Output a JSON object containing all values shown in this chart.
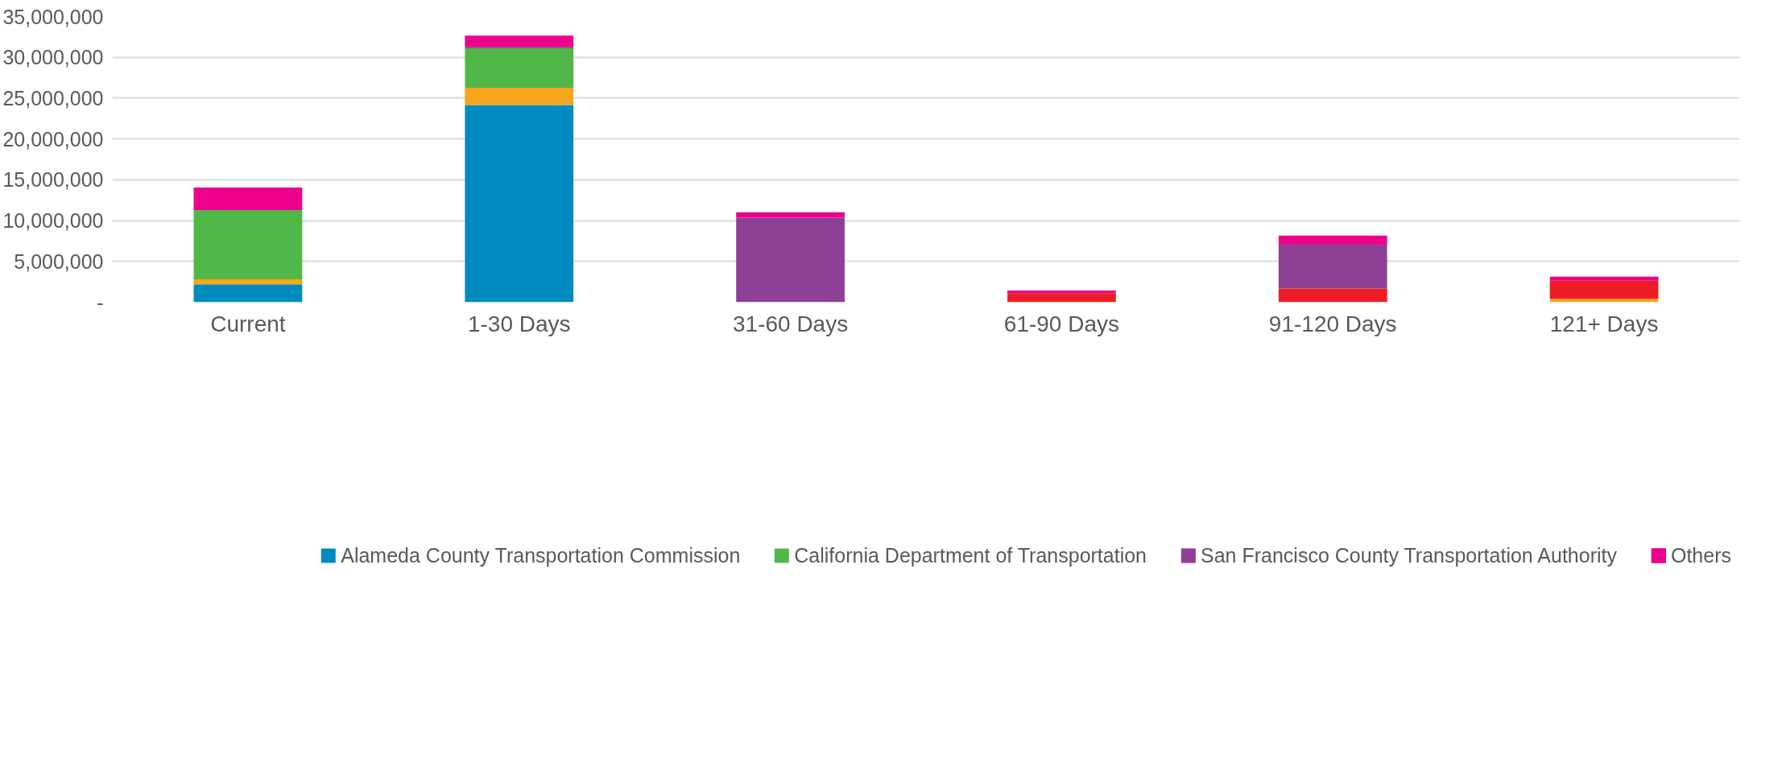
{
  "chart_data": {
    "type": "bar",
    "stacked": true,
    "categories": [
      "Current",
      "1-30 Days",
      "31-60 Days",
      "61-90 Days",
      "91-120 Days",
      "121+ Days"
    ],
    "series": [
      {
        "name": "Alameda County Transportation Commission",
        "color": "#008bc0",
        "values": [
          2200000,
          24150000,
          null,
          null,
          null,
          null
        ]
      },
      {
        "color": "#f7a51c",
        "values": [
          600000,
          2120000,
          null,
          null,
          null,
          430000
        ]
      },
      {
        "name": "California Department of Transportation",
        "color": "#50b748",
        "values": [
          8500000,
          4840000,
          null,
          null,
          null,
          null
        ]
      },
      {
        "color": "#ed1c24",
        "values": [
          null,
          null,
          null,
          1120000,
          1680000,
          2200000
        ]
      },
      {
        "name": "San Francisco County Transportation Authority",
        "color": "#8e3f96",
        "values": [
          null,
          160000,
          10360000,
          null,
          5360000,
          null
        ]
      },
      {
        "name": "Others",
        "color": "#ec008c",
        "values": [
          2750000,
          1380000,
          650000,
          300000,
          1120000,
          500000
        ]
      }
    ],
    "ylim": [
      0,
      35000000
    ],
    "yticks": [
      {
        "value": 0,
        "label": "-"
      },
      {
        "value": 5000000,
        "label": "5,000,000"
      },
      {
        "value": 10000000,
        "label": "10,000,000"
      },
      {
        "value": 15000000,
        "label": "15,000,000"
      },
      {
        "value": 20000000,
        "label": "20,000,000"
      },
      {
        "value": 25000000,
        "label": "25,000,000"
      },
      {
        "value": 30000000,
        "label": "30,000,000"
      },
      {
        "value": 35000000,
        "label": "35,000,000"
      }
    ],
    "grid": "y",
    "legend": "bottom"
  }
}
